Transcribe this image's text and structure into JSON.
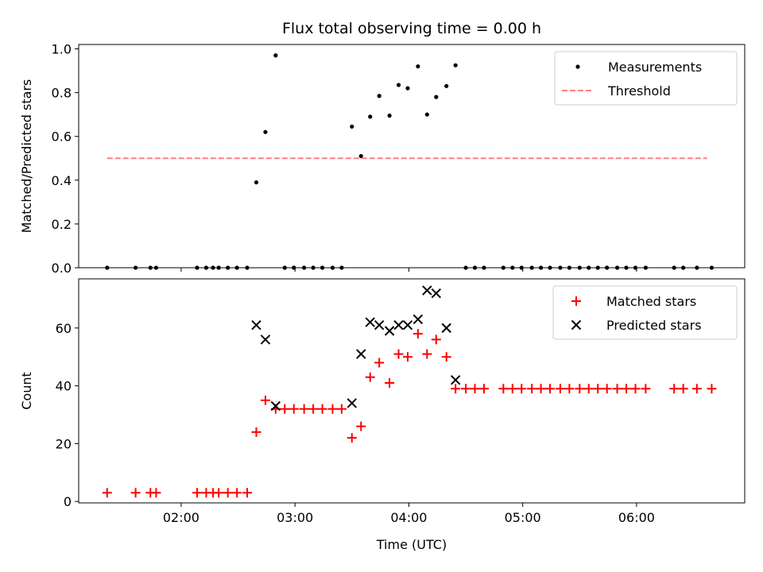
{
  "chart_data": [
    {
      "type": "scatter",
      "title": "Flux total observing time = 0.00 h",
      "xlabel": "",
      "ylabel": "Matched/Predicted stars",
      "xlim": [
        1.1,
        6.95
      ],
      "ylim": [
        0.0,
        1.02
      ],
      "yticks": [
        0.0,
        0.2,
        0.4,
        0.6,
        0.8,
        1.0
      ],
      "ytick_labels": [
        "0.0",
        "0.2",
        "0.4",
        "0.6",
        "0.8",
        "1.0"
      ],
      "xticks": [
        2,
        3,
        4,
        5,
        6
      ],
      "legend_position": "top-right",
      "grid": false,
      "series": [
        {
          "name": "Measurements",
          "marker": "dot",
          "color": "#000000",
          "x": [
            1.35,
            1.6,
            1.73,
            1.78,
            2.14,
            2.22,
            2.28,
            2.33,
            2.41,
            2.49,
            2.58,
            2.66,
            2.74,
            2.83,
            2.91,
            2.99,
            3.08,
            3.16,
            3.24,
            3.33,
            3.41,
            3.5,
            3.58,
            3.66,
            3.74,
            3.83,
            3.91,
            3.99,
            4.08,
            4.16,
            4.24,
            4.33,
            4.41,
            4.5,
            4.58,
            4.66,
            4.83,
            4.91,
            4.99,
            5.08,
            5.16,
            5.24,
            5.33,
            5.41,
            5.5,
            5.58,
            5.66,
            5.74,
            5.83,
            5.91,
            5.99,
            6.08,
            6.33,
            6.41,
            6.53,
            6.66
          ],
          "y": [
            0,
            0,
            0,
            0,
            0,
            0,
            0,
            0,
            0,
            0,
            0,
            0.39,
            0.62,
            0.97,
            0,
            0,
            0,
            0,
            0,
            0,
            0,
            0.645,
            0.51,
            0.69,
            0.785,
            0.695,
            0.835,
            0.82,
            0.92,
            0.7,
            0.78,
            0.83,
            0.925,
            0,
            0,
            0,
            0,
            0,
            0,
            0,
            0,
            0,
            0,
            0,
            0,
            0,
            0,
            0,
            0,
            0,
            0,
            0,
            0,
            0,
            0,
            0
          ]
        },
        {
          "name": "Threshold",
          "marker": "dashed-line",
          "color": "#ff7f7f",
          "x": [
            1.35,
            6.62
          ],
          "y": [
            0.5,
            0.5
          ]
        }
      ]
    },
    {
      "type": "scatter",
      "title": "",
      "xlabel": "Time (UTC)",
      "ylabel": "Count",
      "xlim": [
        1.1,
        6.95
      ],
      "ylim": [
        -0.5,
        77
      ],
      "yticks": [
        0,
        20,
        40,
        60
      ],
      "ytick_labels": [
        "0",
        "20",
        "40",
        "60"
      ],
      "xticks": [
        2,
        3,
        4,
        5,
        6
      ],
      "xtick_labels": [
        "02:00",
        "03:00",
        "04:00",
        "05:00",
        "06:00"
      ],
      "legend_position": "top-right",
      "grid": false,
      "series": [
        {
          "name": "Matched stars",
          "marker": "plus",
          "color": "#ff0000",
          "x": [
            1.35,
            1.6,
            1.73,
            1.78,
            2.14,
            2.22,
            2.28,
            2.33,
            2.41,
            2.49,
            2.58,
            2.66,
            2.74,
            2.83,
            2.91,
            2.99,
            3.08,
            3.16,
            3.24,
            3.33,
            3.41,
            3.5,
            3.58,
            3.66,
            3.74,
            3.83,
            3.91,
            3.99,
            4.08,
            4.16,
            4.24,
            4.33,
            4.41,
            4.5,
            4.58,
            4.66,
            4.83,
            4.91,
            4.99,
            5.08,
            5.16,
            5.24,
            5.33,
            5.41,
            5.5,
            5.58,
            5.66,
            5.74,
            5.83,
            5.91,
            5.99,
            6.08,
            6.33,
            6.41,
            6.53,
            6.66
          ],
          "y": [
            3,
            3,
            3,
            3,
            3,
            3,
            3,
            3,
            3,
            3,
            3,
            24,
            35,
            32,
            32,
            32,
            32,
            32,
            32,
            32,
            32,
            22,
            26,
            43,
            48,
            41,
            51,
            50,
            58,
            51,
            56,
            50,
            39,
            39,
            39,
            39,
            39,
            39,
            39,
            39,
            39,
            39,
            39,
            39,
            39,
            39,
            39,
            39,
            39,
            39,
            39,
            39,
            39,
            39,
            39,
            39
          ]
        },
        {
          "name": "Predicted stars",
          "marker": "x",
          "color": "#000000",
          "x": [
            2.66,
            2.74,
            2.83,
            3.5,
            3.58,
            3.66,
            3.74,
            3.83,
            3.91,
            3.99,
            4.08,
            4.16,
            4.24,
            4.33,
            4.41
          ],
          "y": [
            61,
            56,
            33,
            34,
            51,
            62,
            61,
            59,
            61,
            61,
            63,
            73,
            72,
            60,
            42
          ]
        }
      ]
    }
  ]
}
